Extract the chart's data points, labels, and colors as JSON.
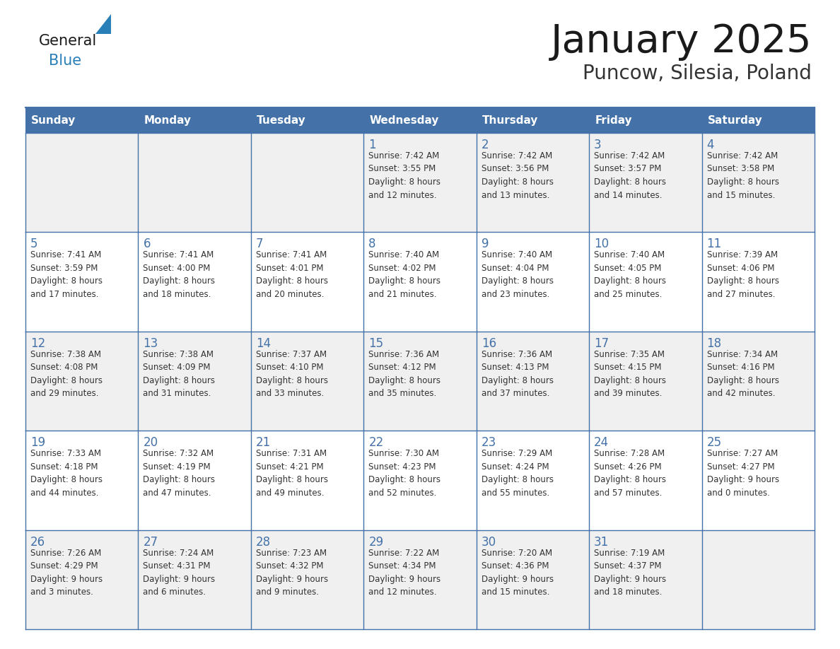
{
  "title": "January 2025",
  "subtitle": "Puncow, Silesia, Poland",
  "days_of_week": [
    "Sunday",
    "Monday",
    "Tuesday",
    "Wednesday",
    "Thursday",
    "Friday",
    "Saturday"
  ],
  "header_bg": "#4472a8",
  "header_text": "#ffffff",
  "row_bg_1": "#f0f0f0",
  "row_bg_2": "#ffffff",
  "border_color": "#4472a8",
  "day_number_color": "#4472a8",
  "cell_text_color": "#333333",
  "title_color": "#1a1a1a",
  "subtitle_color": "#333333",
  "general_text_color": "#1a1a1a",
  "blue_logo_color": "#2980b9",
  "calendar": [
    [
      {
        "day": "",
        "text": ""
      },
      {
        "day": "",
        "text": ""
      },
      {
        "day": "",
        "text": ""
      },
      {
        "day": "1",
        "text": "Sunrise: 7:42 AM\nSunset: 3:55 PM\nDaylight: 8 hours\nand 12 minutes."
      },
      {
        "day": "2",
        "text": "Sunrise: 7:42 AM\nSunset: 3:56 PM\nDaylight: 8 hours\nand 13 minutes."
      },
      {
        "day": "3",
        "text": "Sunrise: 7:42 AM\nSunset: 3:57 PM\nDaylight: 8 hours\nand 14 minutes."
      },
      {
        "day": "4",
        "text": "Sunrise: 7:42 AM\nSunset: 3:58 PM\nDaylight: 8 hours\nand 15 minutes."
      }
    ],
    [
      {
        "day": "5",
        "text": "Sunrise: 7:41 AM\nSunset: 3:59 PM\nDaylight: 8 hours\nand 17 minutes."
      },
      {
        "day": "6",
        "text": "Sunrise: 7:41 AM\nSunset: 4:00 PM\nDaylight: 8 hours\nand 18 minutes."
      },
      {
        "day": "7",
        "text": "Sunrise: 7:41 AM\nSunset: 4:01 PM\nDaylight: 8 hours\nand 20 minutes."
      },
      {
        "day": "8",
        "text": "Sunrise: 7:40 AM\nSunset: 4:02 PM\nDaylight: 8 hours\nand 21 minutes."
      },
      {
        "day": "9",
        "text": "Sunrise: 7:40 AM\nSunset: 4:04 PM\nDaylight: 8 hours\nand 23 minutes."
      },
      {
        "day": "10",
        "text": "Sunrise: 7:40 AM\nSunset: 4:05 PM\nDaylight: 8 hours\nand 25 minutes."
      },
      {
        "day": "11",
        "text": "Sunrise: 7:39 AM\nSunset: 4:06 PM\nDaylight: 8 hours\nand 27 minutes."
      }
    ],
    [
      {
        "day": "12",
        "text": "Sunrise: 7:38 AM\nSunset: 4:08 PM\nDaylight: 8 hours\nand 29 minutes."
      },
      {
        "day": "13",
        "text": "Sunrise: 7:38 AM\nSunset: 4:09 PM\nDaylight: 8 hours\nand 31 minutes."
      },
      {
        "day": "14",
        "text": "Sunrise: 7:37 AM\nSunset: 4:10 PM\nDaylight: 8 hours\nand 33 minutes."
      },
      {
        "day": "15",
        "text": "Sunrise: 7:36 AM\nSunset: 4:12 PM\nDaylight: 8 hours\nand 35 minutes."
      },
      {
        "day": "16",
        "text": "Sunrise: 7:36 AM\nSunset: 4:13 PM\nDaylight: 8 hours\nand 37 minutes."
      },
      {
        "day": "17",
        "text": "Sunrise: 7:35 AM\nSunset: 4:15 PM\nDaylight: 8 hours\nand 39 minutes."
      },
      {
        "day": "18",
        "text": "Sunrise: 7:34 AM\nSunset: 4:16 PM\nDaylight: 8 hours\nand 42 minutes."
      }
    ],
    [
      {
        "day": "19",
        "text": "Sunrise: 7:33 AM\nSunset: 4:18 PM\nDaylight: 8 hours\nand 44 minutes."
      },
      {
        "day": "20",
        "text": "Sunrise: 7:32 AM\nSunset: 4:19 PM\nDaylight: 8 hours\nand 47 minutes."
      },
      {
        "day": "21",
        "text": "Sunrise: 7:31 AM\nSunset: 4:21 PM\nDaylight: 8 hours\nand 49 minutes."
      },
      {
        "day": "22",
        "text": "Sunrise: 7:30 AM\nSunset: 4:23 PM\nDaylight: 8 hours\nand 52 minutes."
      },
      {
        "day": "23",
        "text": "Sunrise: 7:29 AM\nSunset: 4:24 PM\nDaylight: 8 hours\nand 55 minutes."
      },
      {
        "day": "24",
        "text": "Sunrise: 7:28 AM\nSunset: 4:26 PM\nDaylight: 8 hours\nand 57 minutes."
      },
      {
        "day": "25",
        "text": "Sunrise: 7:27 AM\nSunset: 4:27 PM\nDaylight: 9 hours\nand 0 minutes."
      }
    ],
    [
      {
        "day": "26",
        "text": "Sunrise: 7:26 AM\nSunset: 4:29 PM\nDaylight: 9 hours\nand 3 minutes."
      },
      {
        "day": "27",
        "text": "Sunrise: 7:24 AM\nSunset: 4:31 PM\nDaylight: 9 hours\nand 6 minutes."
      },
      {
        "day": "28",
        "text": "Sunrise: 7:23 AM\nSunset: 4:32 PM\nDaylight: 9 hours\nand 9 minutes."
      },
      {
        "day": "29",
        "text": "Sunrise: 7:22 AM\nSunset: 4:34 PM\nDaylight: 9 hours\nand 12 minutes."
      },
      {
        "day": "30",
        "text": "Sunrise: 7:20 AM\nSunset: 4:36 PM\nDaylight: 9 hours\nand 15 minutes."
      },
      {
        "day": "31",
        "text": "Sunrise: 7:19 AM\nSunset: 4:37 PM\nDaylight: 9 hours\nand 18 minutes."
      },
      {
        "day": "",
        "text": ""
      }
    ]
  ]
}
